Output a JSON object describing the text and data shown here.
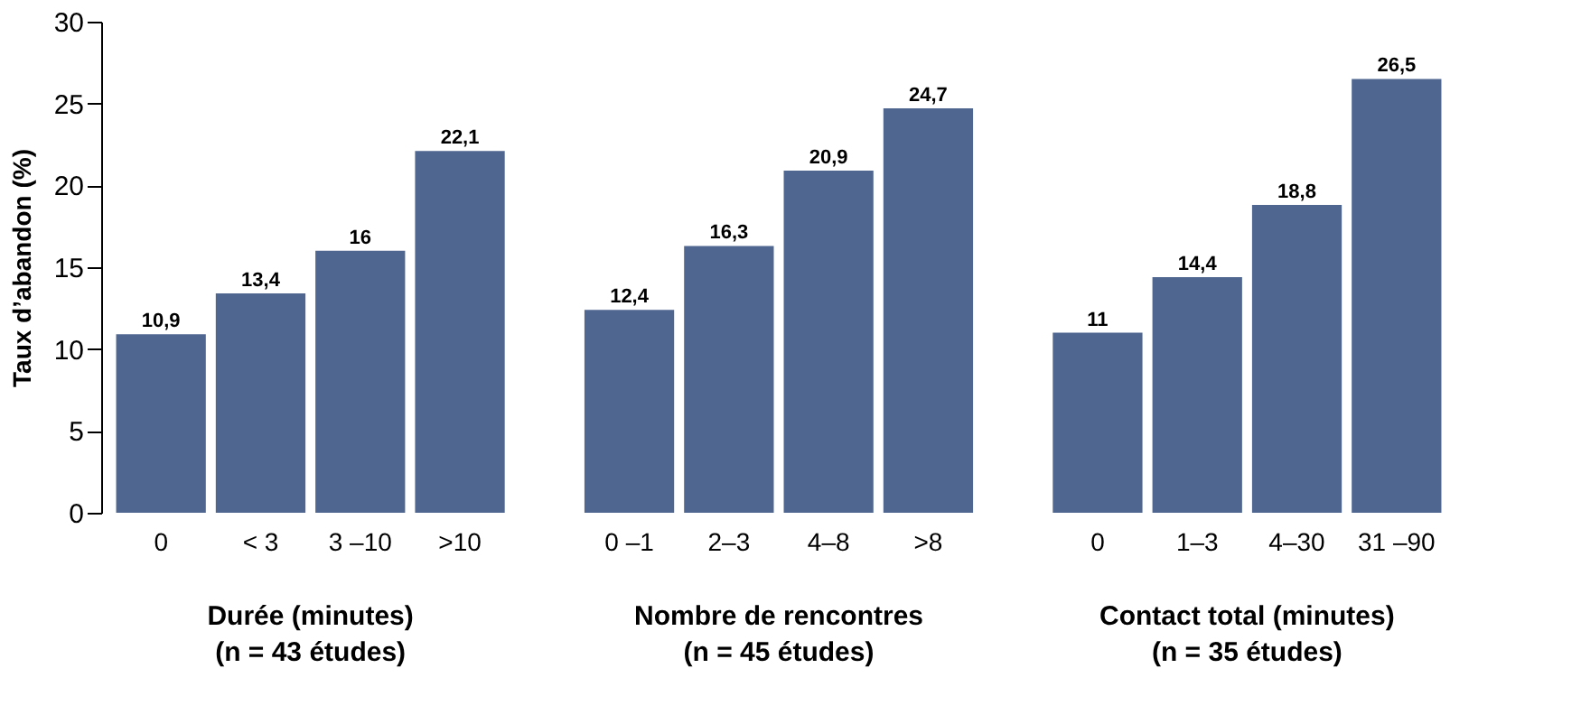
{
  "chart_data": {
    "type": "bar",
    "ylabel": "Taux d’abandon (%)",
    "categories": [
      "0",
      "< 3",
      "3 –10",
      ">10",
      "0 –1",
      "2–3",
      "4–8",
      ">8",
      "0",
      "1–3",
      "4–30",
      "31 –90"
    ],
    "values": [
      10.9,
      13.4,
      16,
      22.1,
      12.4,
      16.3,
      20.9,
      24.7,
      11,
      14.4,
      18.8,
      26.5
    ],
    "color": "#4f6690",
    "ylim": [
      0,
      30
    ],
    "yticks": [
      0,
      5,
      10,
      15,
      20,
      25,
      30
    ],
    "grid": false,
    "value_labels": [
      "10,9",
      "13,4",
      "16",
      "22,1",
      "12,4",
      "16,3",
      "20,9",
      "24,7",
      "11",
      "14,4",
      "18,8",
      "26,5"
    ],
    "annotations": [
      "Durée (minutes)\n(n = 43 études)",
      "Nombre de rencontres\n(n = 45 études)",
      "Contact total (minutes)\n(n = 35 études)"
    ]
  }
}
